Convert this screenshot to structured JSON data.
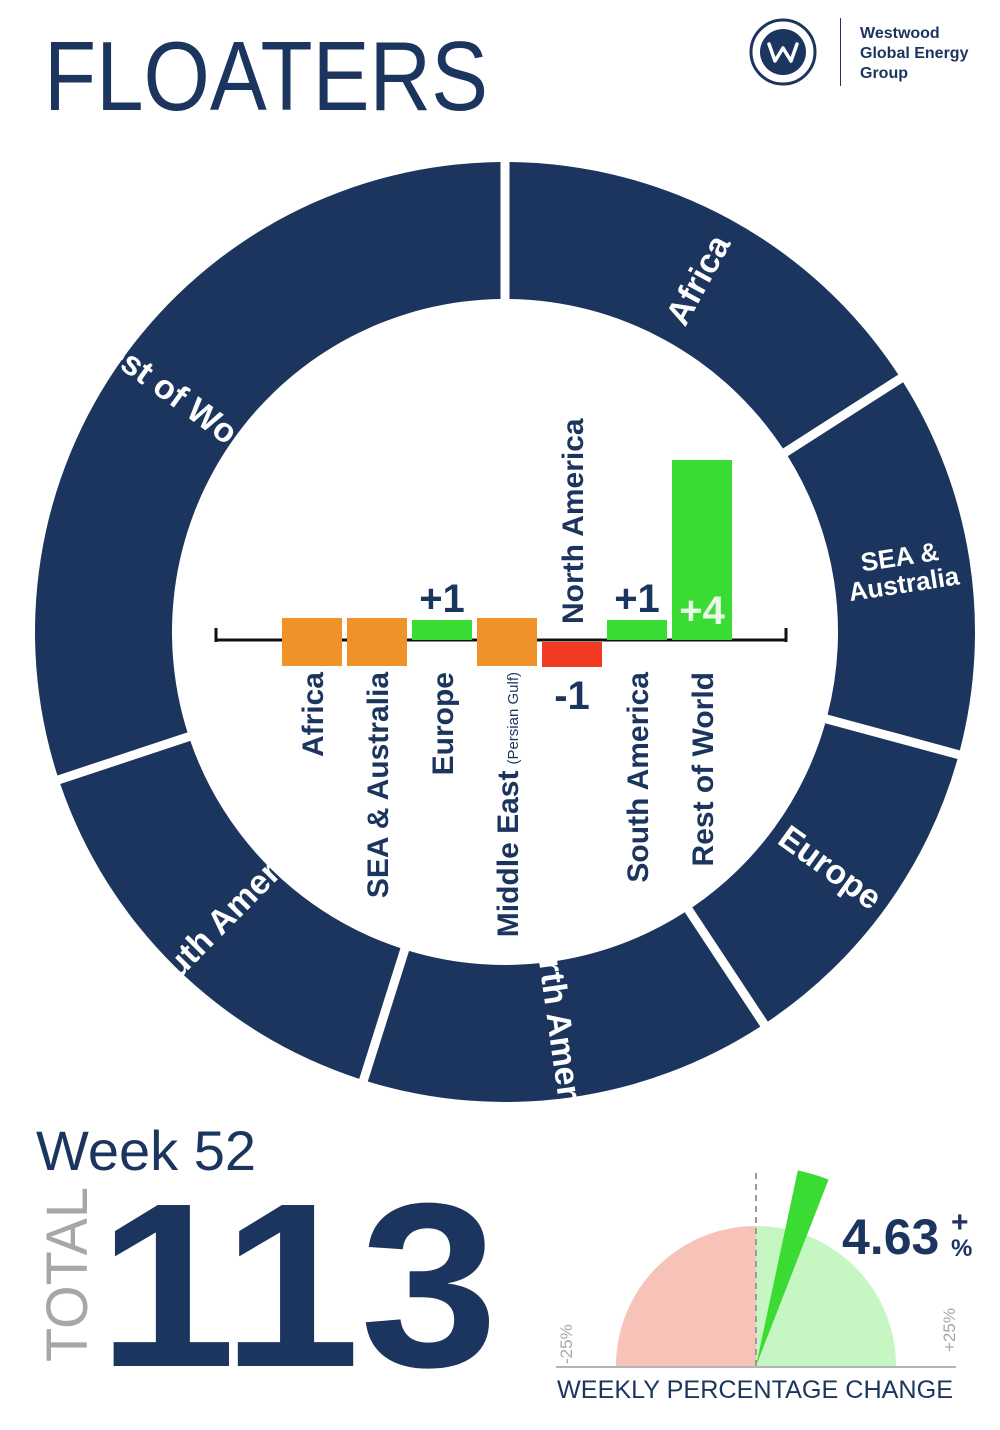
{
  "header": {
    "title": "FLOATERS",
    "logo_text_lines": [
      "Westwood",
      "Global Energy",
      "Group"
    ],
    "logo_mark": "w-logo-icon"
  },
  "colors": {
    "navy": "#1c355e",
    "orange": "#f0922a",
    "green": "#3adb33",
    "red": "#f23a22",
    "pink": "#f7c3b9",
    "light_green": "#c6f6c2"
  },
  "chart_data": [
    {
      "type": "pie",
      "subtype": "donut",
      "segments": [
        {
          "label": "Africa",
          "value": 18
        },
        {
          "label": "SEA & Australia",
          "value": 15
        },
        {
          "label": "Europe",
          "value": 13
        },
        {
          "label": "North America",
          "value": 16
        },
        {
          "label": "South America",
          "value": 17
        },
        {
          "label": "Rest of World",
          "value": 34
        }
      ]
    },
    {
      "type": "bar",
      "categories": [
        "Africa",
        "SEA & Australia",
        "Europe",
        "Middle East",
        "North America",
        "South America",
        "Rest of World"
      ],
      "category_notes": {
        "Middle East": "(Persian Gulf)"
      },
      "values": [
        0,
        0,
        1,
        0,
        -1,
        1,
        4
      ],
      "value_labels": [
        "",
        "",
        "+1",
        "",
        "-1",
        "+1",
        "+4"
      ]
    },
    {
      "type": "gauge",
      "value": 4.63,
      "display": "4.63",
      "sign": "+",
      "unit": "%",
      "min": -25,
      "max": 25,
      "min_label": "-25%",
      "max_label": "+25%",
      "label": "WEEKLY PERCENTAGE CHANGE"
    }
  ],
  "summary": {
    "week_label": "Week 52",
    "total_label": "TOTAL",
    "total_value": "113"
  }
}
